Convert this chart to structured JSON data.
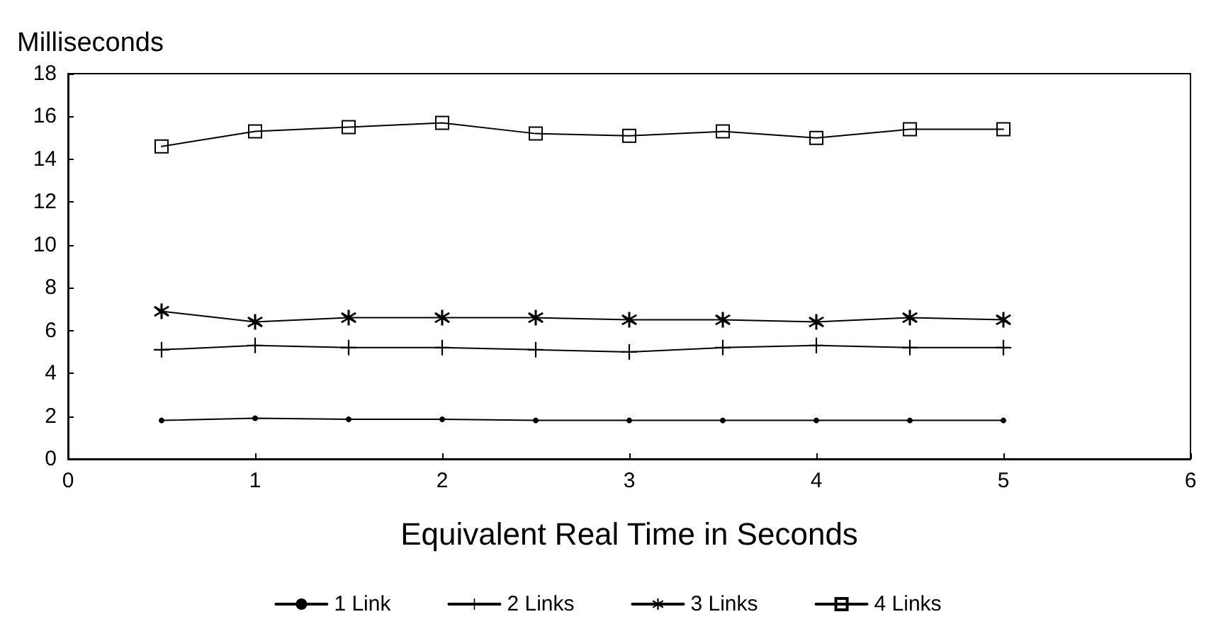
{
  "chart_data": {
    "type": "line",
    "ylabel": "Milliseconds",
    "xlabel": "Equivalent Real Time in Seconds",
    "x": [
      0.5,
      1,
      1.5,
      2,
      2.5,
      3,
      3.5,
      4,
      4.5,
      5
    ],
    "series": [
      {
        "name": "1 Link",
        "color": "#000000",
        "marker": "circle",
        "values": [
          1.8,
          1.9,
          1.85,
          1.85,
          1.8,
          1.8,
          1.8,
          1.8,
          1.8,
          1.8
        ]
      },
      {
        "name": "2 Links",
        "color": "#000000",
        "marker": "cross",
        "values": [
          5.1,
          5.3,
          5.2,
          5.2,
          5.1,
          5.0,
          5.2,
          5.3,
          5.2,
          5.2
        ]
      },
      {
        "name": "3 Links",
        "color": "#000000",
        "marker": "star",
        "values": [
          6.9,
          6.4,
          6.6,
          6.6,
          6.6,
          6.5,
          6.5,
          6.4,
          6.6,
          6.5
        ]
      },
      {
        "name": "4 Links",
        "color": "#000000",
        "marker": "square",
        "values": [
          14.6,
          15.3,
          15.5,
          15.7,
          15.2,
          15.1,
          15.3,
          15.0,
          15.4,
          15.4
        ]
      }
    ],
    "xlim": [
      0,
      6
    ],
    "xticks": [
      0,
      1,
      2,
      3,
      4,
      5,
      6
    ],
    "ylim": [
      0,
      18
    ],
    "yticks": [
      0,
      2,
      4,
      6,
      8,
      10,
      12,
      14,
      16,
      18
    ],
    "grid": false,
    "legend": "bottom",
    "line_style": "solid"
  }
}
